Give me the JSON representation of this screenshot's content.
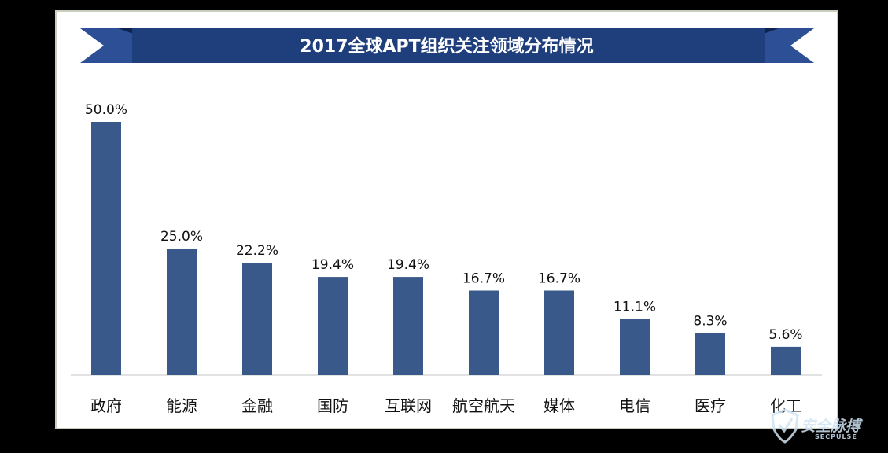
{
  "chart_data": {
    "type": "bar",
    "title": "2017全球APT组织关注领域分布情况",
    "categories": [
      "政府",
      "能源",
      "金融",
      "国防",
      "互联网",
      "航空航天",
      "媒体",
      "电信",
      "医疗",
      "化工"
    ],
    "values": [
      50.0,
      25.0,
      22.2,
      19.4,
      19.4,
      16.7,
      16.7,
      11.1,
      8.3,
      5.6
    ],
    "value_labels": [
      "50.0%",
      "25.0%",
      "22.2%",
      "19.4%",
      "19.4%",
      "16.7%",
      "16.7%",
      "11.1%",
      "8.3%",
      "5.6%"
    ],
    "xlabel": "",
    "ylabel": "",
    "ylim": [
      0,
      50
    ],
    "grid": false,
    "legend": "none",
    "bar_color": "#38598a",
    "banner_color": "#1f3e7c",
    "banner_ribbon_color": "#2c4f95"
  },
  "watermark": {
    "text": "安全脉搏",
    "subtext": "SECPULSE",
    "icon": "shield-icon"
  }
}
